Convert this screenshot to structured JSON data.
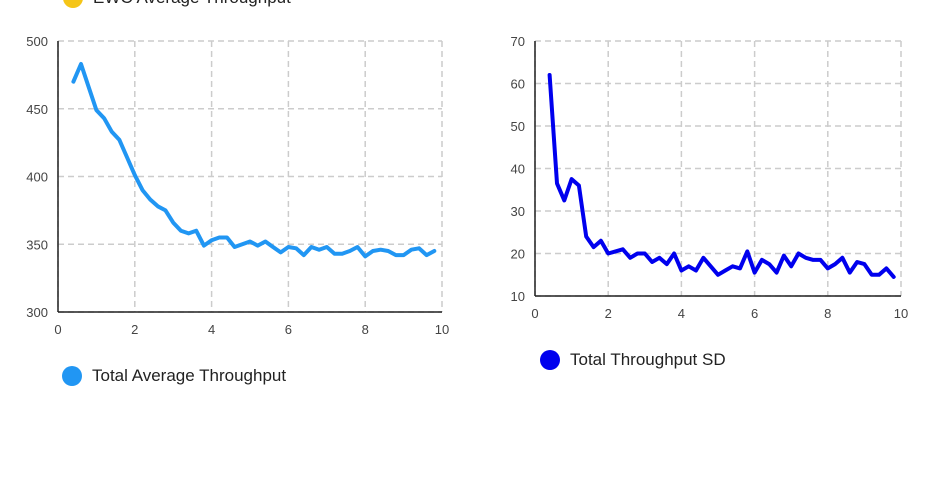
{
  "top_legend": {
    "label": "EWC Average Throughput",
    "color": "#f5c518"
  },
  "chart_data": [
    {
      "type": "line",
      "title": "",
      "xlabel": "",
      "ylabel": "",
      "xlim": [
        0,
        10
      ],
      "ylim": [
        300,
        500
      ],
      "xticks": [
        0,
        2,
        4,
        6,
        8,
        10
      ],
      "yticks": [
        300,
        350,
        400,
        450,
        500
      ],
      "grid": true,
      "legend_placement": "bottom-left",
      "series": [
        {
          "name": "Total Average Throughput",
          "color": "#2196f3",
          "x": [
            0.4,
            0.6,
            0.8,
            1.0,
            1.2,
            1.4,
            1.6,
            1.8,
            2.0,
            2.2,
            2.4,
            2.6,
            2.8,
            3.0,
            3.2,
            3.4,
            3.6,
            3.8,
            4.0,
            4.2,
            4.4,
            4.6,
            4.8,
            5.0,
            5.2,
            5.4,
            5.6,
            5.8,
            6.0,
            6.2,
            6.4,
            6.6,
            6.8,
            7.0,
            7.2,
            7.4,
            7.6,
            7.8,
            8.0,
            8.2,
            8.4,
            8.6,
            8.8,
            9.0,
            9.2,
            9.4,
            9.6,
            9.8
          ],
          "y": [
            470,
            483,
            466,
            449,
            443,
            433,
            427,
            414,
            401,
            390,
            383,
            378,
            375,
            366,
            360,
            358,
            360,
            349,
            353,
            355,
            355,
            348,
            350,
            352,
            349,
            352,
            348,
            344,
            348,
            347,
            342,
            348,
            346,
            348,
            343,
            343,
            345,
            348,
            341,
            345,
            346,
            345,
            342,
            342,
            346,
            347,
            342,
            345
          ]
        }
      ]
    },
    {
      "type": "line",
      "title": "",
      "xlabel": "",
      "ylabel": "",
      "xlim": [
        0,
        10
      ],
      "ylim": [
        10,
        70
      ],
      "xticks": [
        0,
        2,
        4,
        6,
        8,
        10
      ],
      "yticks": [
        10,
        20,
        30,
        40,
        50,
        60,
        70
      ],
      "grid": true,
      "legend_placement": "bottom-left",
      "series": [
        {
          "name": "Total Throughput SD",
          "color": "#0000ee",
          "x": [
            0.4,
            0.6,
            0.8,
            1.0,
            1.2,
            1.4,
            1.6,
            1.8,
            2.0,
            2.2,
            2.4,
            2.6,
            2.8,
            3.0,
            3.2,
            3.4,
            3.6,
            3.8,
            4.0,
            4.2,
            4.4,
            4.6,
            4.8,
            5.0,
            5.2,
            5.4,
            5.6,
            5.8,
            6.0,
            6.2,
            6.4,
            6.6,
            6.8,
            7.0,
            7.2,
            7.4,
            7.6,
            7.8,
            8.0,
            8.2,
            8.4,
            8.6,
            8.8,
            9.0,
            9.2,
            9.4,
            9.6,
            9.8
          ],
          "y": [
            62,
            36.5,
            32.5,
            37.5,
            36,
            24,
            21.5,
            23,
            20,
            20.5,
            21,
            19,
            20,
            20,
            18,
            19,
            17.5,
            20,
            16,
            17,
            16,
            19,
            17,
            15,
            16,
            17,
            16.5,
            20.5,
            15.5,
            18.5,
            17.5,
            15.5,
            19.5,
            17,
            20,
            19,
            18.5,
            18.5,
            16.5,
            17.5,
            19,
            15.5,
            18,
            17.5,
            15,
            15,
            16.5,
            14.5
          ]
        }
      ]
    }
  ]
}
